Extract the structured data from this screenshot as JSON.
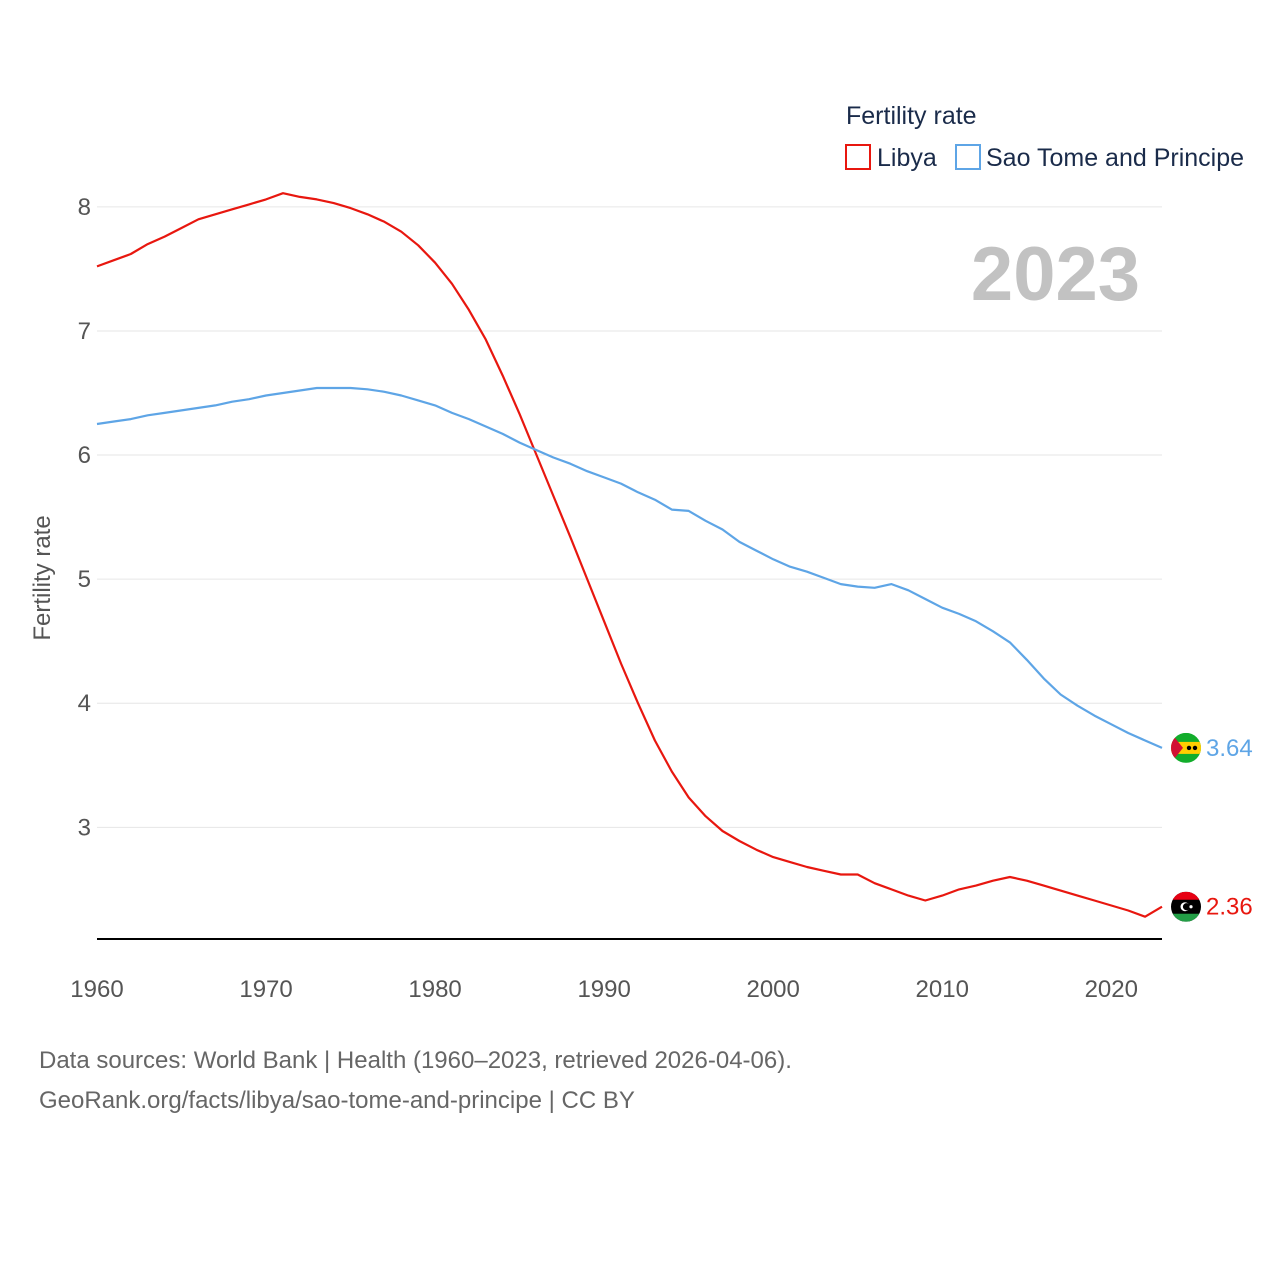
{
  "chart_data": {
    "type": "line",
    "title": "Fertility rate",
    "ylabel": "Fertility rate",
    "xlabel": "",
    "year_label": "2023",
    "x": [
      1960,
      1961,
      1962,
      1963,
      1964,
      1965,
      1966,
      1967,
      1968,
      1969,
      1970,
      1971,
      1972,
      1973,
      1974,
      1975,
      1976,
      1977,
      1978,
      1979,
      1980,
      1981,
      1982,
      1983,
      1984,
      1985,
      1986,
      1987,
      1988,
      1989,
      1990,
      1991,
      1992,
      1993,
      1994,
      1995,
      1996,
      1997,
      1998,
      1999,
      2000,
      2001,
      2002,
      2003,
      2004,
      2005,
      2006,
      2007,
      2008,
      2009,
      2010,
      2011,
      2012,
      2013,
      2014,
      2015,
      2016,
      2017,
      2018,
      2019,
      2020,
      2021,
      2022,
      2023
    ],
    "xlim": [
      1960,
      2023
    ],
    "ylim": [
      2.1,
      8.7
    ],
    "x_ticks": [
      "1960",
      "1970",
      "1980",
      "1990",
      "2000",
      "2010",
      "2020"
    ],
    "y_ticks": [
      "3",
      "4",
      "5",
      "6",
      "7",
      "8"
    ],
    "series": [
      {
        "name": "Libya",
        "color": "#e8170f",
        "end_label": "2.36",
        "flag": "libya-flag-icon",
        "values": [
          7.52,
          7.57,
          7.62,
          7.7,
          7.76,
          7.83,
          7.9,
          7.94,
          7.98,
          8.02,
          8.06,
          8.11,
          8.08,
          8.06,
          8.03,
          7.99,
          7.94,
          7.88,
          7.8,
          7.69,
          7.55,
          7.38,
          7.17,
          6.93,
          6.64,
          6.33,
          6.0,
          5.67,
          5.34,
          5.0,
          4.66,
          4.32,
          4.0,
          3.7,
          3.45,
          3.24,
          3.09,
          2.97,
          2.89,
          2.82,
          2.76,
          2.72,
          2.68,
          2.65,
          2.62,
          2.62,
          2.55,
          2.5,
          2.45,
          2.41,
          2.45,
          2.5,
          2.53,
          2.57,
          2.6,
          2.57,
          2.53,
          2.49,
          2.45,
          2.41,
          2.37,
          2.33,
          2.28,
          2.36
        ]
      },
      {
        "name": "Sao Tome and Principe",
        "color": "#5ea5e6",
        "end_label": "3.64",
        "flag": "sao-tome-flag-icon",
        "values": [
          6.25,
          6.27,
          6.29,
          6.32,
          6.34,
          6.36,
          6.38,
          6.4,
          6.43,
          6.45,
          6.48,
          6.5,
          6.52,
          6.54,
          6.54,
          6.54,
          6.53,
          6.51,
          6.48,
          6.44,
          6.4,
          6.34,
          6.29,
          6.23,
          6.17,
          6.1,
          6.04,
          5.98,
          5.93,
          5.87,
          5.82,
          5.77,
          5.7,
          5.64,
          5.56,
          5.55,
          5.47,
          5.4,
          5.3,
          5.23,
          5.16,
          5.1,
          5.06,
          5.01,
          4.96,
          4.94,
          4.93,
          4.96,
          4.91,
          4.84,
          4.77,
          4.72,
          4.66,
          4.58,
          4.49,
          4.35,
          4.2,
          4.07,
          3.98,
          3.9,
          3.83,
          3.76,
          3.7,
          3.64
        ]
      }
    ],
    "legend_position": "top-right"
  },
  "footer": {
    "source_line": "Data sources: World Bank | Health (1960–2023, retrieved 2026-04-06).",
    "credit_line": "GeoRank.org/facts/libya/sao-tome-and-principe | CC BY"
  }
}
